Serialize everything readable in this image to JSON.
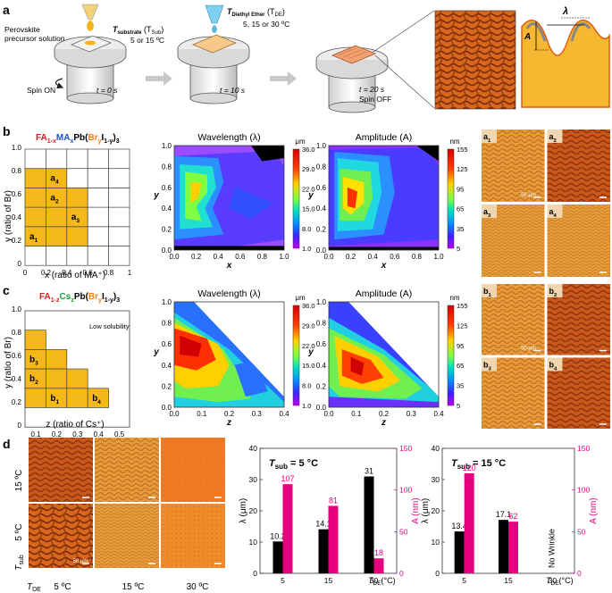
{
  "panel_labels": {
    "a": "a",
    "b": "b",
    "c": "c",
    "d": "d"
  },
  "panel_a": {
    "step1": {
      "precursor": "Perovskite",
      "precursor2": "precursor solution",
      "tsub_label": "T",
      "tsub_sub": "substrate",
      "tsub_paren": " (T",
      "tsub_paren_sub": "Sub",
      "tsub_close": ")",
      "temps": "5 or 15 ºC",
      "spin": "Spin ON",
      "time": "t = 0 s"
    },
    "step2": {
      "tde_label": "T",
      "tde_sub": "Diethyl Ether",
      "tde_paren": " (T",
      "tde_paren_sub": "DE",
      "tde_close": ")",
      "temps": "5, 15 or 30 ºC",
      "time": "t = 10 s"
    },
    "step3": {
      "time": "t = 20 s",
      "spin": "Spin OFF"
    },
    "wave_labels": {
      "lambda": "λ",
      "amp": "A"
    }
  },
  "panel_b": {
    "formula": {
      "p1": "FA",
      "p1s": "1-x",
      "p2": "MA",
      "p2s": "x",
      "p3": "Pb(",
      "p4": "Br",
      "p4s": "y",
      "p5": "I",
      "p5s": "1-y",
      "p6": ")",
      "p6s": "3"
    },
    "ylabel": "y (ratio of Br)",
    "xlabel": "x (ratio of MA⁺)",
    "xticks": [
      "0",
      "0.2",
      "0.4",
      "0.6",
      "0.8",
      "1"
    ],
    "yticks": [
      "0",
      "0.2",
      "0.4",
      "0.6",
      "0.8",
      "1.0"
    ],
    "points": [
      {
        "main": "a",
        "sub": "4"
      },
      {
        "main": "a",
        "sub": "2"
      },
      {
        "main": "a",
        "sub": "3"
      },
      {
        "main": "a",
        "sub": "1"
      }
    ],
    "map1": {
      "title": "Wavelength (λ)",
      "unit": "μm",
      "scale": [
        "36.0",
        "29.0",
        "22.0",
        "15.0",
        "8.0",
        "1.0"
      ],
      "xlabel": "x",
      "ylabel": "y",
      "xticks": [
        "0.0",
        "0.2",
        "0.4",
        "0.6",
        "0.8",
        "1.0"
      ],
      "yticks": [
        "0.0",
        "0.2",
        "0.4",
        "0.6",
        "0.8",
        "1.0"
      ]
    },
    "map2": {
      "title": "Amplitude (A)",
      "unit": "nm",
      "scale": [
        "155",
        "125",
        "95",
        "65",
        "35",
        "5"
      ],
      "xlabel": "x",
      "ylabel": "y",
      "xticks": [
        "0.0",
        "0.2",
        "0.4",
        "0.6",
        "0.8",
        "1.0"
      ],
      "yticks": [
        "0.0",
        "0.2",
        "0.4",
        "0.6",
        "0.8",
        "1.0"
      ]
    },
    "images": [
      {
        "main": "a",
        "sub": "1"
      },
      {
        "main": "a",
        "sub": "2"
      },
      {
        "main": "a",
        "sub": "3"
      },
      {
        "main": "a",
        "sub": "4"
      }
    ],
    "scale_bar": "50 μm"
  },
  "panel_c": {
    "formula": {
      "p1": "FA",
      "p1s": "1-z",
      "p2": "Cs",
      "p2s": "z",
      "p3": "Pb(",
      "p4": "Br",
      "p4s": "y",
      "p5": "I",
      "p5s": "1-y",
      "p6": ")",
      "p6s": "3"
    },
    "note": "Low solubility",
    "ylabel": "y (ratio of Br)",
    "xlabel": "z (ratio of Cs⁺)",
    "xticks": [
      "0.1",
      "0.2",
      "0.3",
      "0.4",
      "0.5"
    ],
    "yticks": [
      "0",
      "0.2",
      "0.4",
      "0.6",
      "0.8",
      "1.0"
    ],
    "points": [
      {
        "main": "b",
        "sub": "3"
      },
      {
        "main": "b",
        "sub": "2"
      },
      {
        "main": "b",
        "sub": "1"
      },
      {
        "main": "b",
        "sub": "4"
      }
    ],
    "map1": {
      "title": "Wavelength (λ)",
      "unit": "μm",
      "scale": [
        "36.0",
        "29.0",
        "22.0",
        "15.0",
        "8.0",
        "1.0"
      ],
      "xlabel": "z",
      "ylabel": "y",
      "xticks": [
        "0.0",
        "0.1",
        "0.2",
        "0.3",
        "0.4"
      ],
      "yticks": [
        "0.0",
        "0.2",
        "0.4",
        "0.6",
        "0.8",
        "1.0"
      ]
    },
    "map2": {
      "title": "Amplitude (A)",
      "unit": "nm",
      "scale": [
        "155",
        "125",
        "95",
        "65",
        "35",
        "5"
      ],
      "xlabel": "z",
      "ylabel": "y",
      "xticks": [
        "0.0",
        "0.1",
        "0.2",
        "0.3",
        "0.4"
      ],
      "yticks": [
        "0.0",
        "0.2",
        "0.4",
        "0.6",
        "0.8",
        "1.0"
      ]
    },
    "images": [
      {
        "main": "b",
        "sub": "1"
      },
      {
        "main": "b",
        "sub": "2"
      },
      {
        "main": "b",
        "sub": "3"
      },
      {
        "main": "b",
        "sub": "4"
      }
    ],
    "scale_bar": "50 μm"
  },
  "panel_d": {
    "row_labels": [
      "15 ºC",
      "5 ºC"
    ],
    "tsub_label": "T",
    "tsub_sub": "sub",
    "tde_label": "T",
    "tde_sub": "DE",
    "col_labels": [
      "5 ºC",
      "15 ºC",
      "30 ºC"
    ],
    "scale_bar": "50 μm"
  },
  "chart_data": [
    {
      "type": "bar",
      "title": "Tsub = 5 °C",
      "categories": [
        "5",
        "15",
        "30"
      ],
      "xlabel": "TDE(°C)",
      "ylabel": "λ (μm)",
      "y2label": "A (nm)",
      "ylim": [
        0,
        40
      ],
      "y2lim": [
        0,
        150
      ],
      "yticks": [
        "0",
        "10",
        "20",
        "30",
        "40"
      ],
      "y2ticks": [
        "0",
        "50",
        "100",
        "150"
      ],
      "series": [
        {
          "name": "λ",
          "axis": "left",
          "color": "#000000",
          "values": [
            10.2,
            14.1,
            31
          ],
          "labels": [
            "10.2",
            "14.1",
            "31"
          ]
        },
        {
          "name": "A",
          "axis": "right",
          "color": "#e6007e",
          "values": [
            107,
            81,
            18
          ],
          "labels": [
            "107",
            "81",
            "18"
          ]
        }
      ]
    },
    {
      "type": "bar",
      "title": "Tsub = 15 °C",
      "categories": [
        "5",
        "15",
        "30"
      ],
      "xlabel": "TDE(°C)",
      "ylabel": "λ (μm)",
      "y2label": "A (nm)",
      "ylim": [
        0,
        40
      ],
      "y2lim": [
        0,
        150
      ],
      "yticks": [
        "0",
        "10",
        "20",
        "30",
        "40"
      ],
      "y2ticks": [
        "0",
        "50",
        "100",
        "150"
      ],
      "annotation": "No Wrinkle",
      "series": [
        {
          "name": "λ",
          "axis": "left",
          "color": "#000000",
          "values": [
            13.4,
            17.1,
            null
          ],
          "labels": [
            "13.4",
            "17.1",
            ""
          ]
        },
        {
          "name": "A",
          "axis": "right",
          "color": "#e6007e",
          "values": [
            120,
            62,
            null
          ],
          "labels": [
            "120",
            "62",
            ""
          ]
        }
      ]
    }
  ]
}
